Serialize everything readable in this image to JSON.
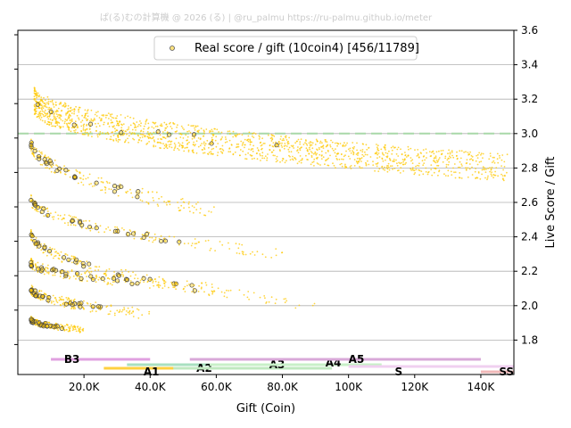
{
  "watermark": "ぱ(る)むの計算機 @ 2026 (る) | @ru_palmu  https://ru-palmu.github.io/meter",
  "chart_data": {
    "type": "scatter",
    "xlabel": "Gift (Coin)",
    "ylabel": "Live Score / Gift",
    "xlim": [
      0,
      150000
    ],
    "ylim": [
      1.6,
      3.6
    ],
    "x_ticks": [
      20000,
      40000,
      60000,
      80000,
      100000,
      120000,
      140000
    ],
    "x_tick_labels": [
      "20.0K",
      "40.0K",
      "60.0K",
      "80.0K",
      "100K",
      "120K",
      "140K"
    ],
    "y_ticks": [
      1.8,
      2.0,
      2.2,
      2.4,
      2.6,
      2.8,
      3.0,
      3.2,
      3.4,
      3.6
    ],
    "y_tick_labels": [
      "1.8",
      "2.0",
      "2.2",
      "2.4",
      "2.6",
      "2.8",
      "3.0",
      "3.2",
      "3.4",
      "3.6"
    ],
    "y_axis_side": "right",
    "grid": "horizontal",
    "reference_line": {
      "y": 3.0,
      "color": "#a8d8a8",
      "style": "dashed"
    },
    "legend": {
      "label": "Real score / gift (10coin4) [456/11789]",
      "position": "top-center"
    },
    "series": [
      {
        "name": "Real score / gift",
        "color": "#ffc800",
        "marker": "dot",
        "bands": [
          {
            "from_x": 5000,
            "to_x": 148000,
            "y_start": 3.2,
            "y_end": 2.8,
            "spread": 0.08
          },
          {
            "from_x": 4000,
            "to_x": 60000,
            "y_start": 2.95,
            "y_end": 2.55,
            "spread": 0.04
          },
          {
            "from_x": 4000,
            "to_x": 80000,
            "y_start": 2.62,
            "y_end": 2.3,
            "spread": 0.03
          },
          {
            "from_x": 4000,
            "to_x": 90000,
            "y_start": 2.42,
            "y_end": 2.0,
            "spread": 0.03
          },
          {
            "from_x": 4000,
            "to_x": 60000,
            "y_start": 2.25,
            "y_end": 2.1,
            "spread": 0.03
          },
          {
            "from_x": 4000,
            "to_x": 40000,
            "y_start": 2.1,
            "y_end": 1.95,
            "spread": 0.03
          },
          {
            "from_x": 4000,
            "to_x": 20000,
            "y_start": 1.92,
            "y_end": 1.86,
            "spread": 0.02
          }
        ]
      }
    ],
    "rank_ranges": [
      {
        "label": "B3",
        "from": 10000,
        "to": 40000,
        "color": "#e0a0e0",
        "label_x": 14000
      },
      {
        "label": "A1",
        "from": 26000,
        "to": 55000,
        "color": "#ffd040",
        "label_x": 38000
      },
      {
        "label": "A2",
        "from": 33000,
        "to": 70000,
        "color": "#a8e0c0",
        "label_x": 54000
      },
      {
        "label": "A3",
        "from": 47000,
        "to": 95000,
        "color": "#c0e8c0",
        "label_x": 76000
      },
      {
        "label": "A4",
        "from": 58000,
        "to": 110000,
        "color": "#c8f0c8",
        "label_x": 93000
      },
      {
        "label": "A5",
        "from": 52000,
        "to": 140000,
        "color": "#d8a8d8",
        "label_x": 100000
      },
      {
        "label": "S",
        "from": 100000,
        "to": 150000,
        "color": "#f0d0f0",
        "label_x": 114000
      },
      {
        "label": "SS",
        "from": 140000,
        "to": 150000,
        "color": "#f0b8b8",
        "label_x": 145500
      }
    ]
  }
}
